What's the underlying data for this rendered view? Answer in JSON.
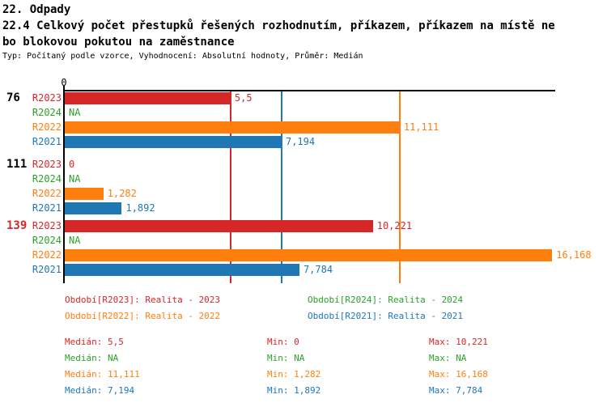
{
  "header": {
    "title_line1": "22. Odpady",
    "title_line2": "22.4 Celkový počet přestupků řešených rozhodnutím, příkazem, příkazem na místě ne",
    "title_line3": "bo blokovou pokutou na zaměstnance",
    "meta": "Typ: Počítaný podle vzorce, Vyhodnocení: Absolutní hodnoty, Průměr: Medián"
  },
  "chart_data": {
    "type": "bar",
    "orientation": "horizontal",
    "x_axis": {
      "zero_label": "0",
      "xlim": [
        0,
        18
      ]
    },
    "grid": false,
    "series_colors": {
      "R2023": "#d62728",
      "R2024": "#2ca02c",
      "R2022": "#ff7f0e",
      "R2021": "#1f77b4"
    },
    "groups": [
      {
        "label": "76",
        "label_color": "#000000",
        "bars": [
          {
            "series": "R2023",
            "value": 5.5,
            "display": "5,5"
          },
          {
            "series": "R2024",
            "value": null,
            "display": "NA"
          },
          {
            "series": "R2022",
            "value": 11.111,
            "display": "11,111"
          },
          {
            "series": "R2021",
            "value": 7.194,
            "display": "7,194"
          }
        ]
      },
      {
        "label": "111",
        "label_color": "#000000",
        "bars": [
          {
            "series": "R2023",
            "value": 0,
            "display": "0"
          },
          {
            "series": "R2024",
            "value": null,
            "display": "NA"
          },
          {
            "series": "R2022",
            "value": 1.282,
            "display": "1,282"
          },
          {
            "series": "R2021",
            "value": 1.892,
            "display": "1,892"
          }
        ]
      },
      {
        "label": "139",
        "label_color": "#d62728",
        "bars": [
          {
            "series": "R2023",
            "value": 10.221,
            "display": "10,221"
          },
          {
            "series": "R2024",
            "value": null,
            "display": "NA"
          },
          {
            "series": "R2022",
            "value": 16.168,
            "display": "16,168"
          },
          {
            "series": "R2021",
            "value": 7.784,
            "display": "7,784"
          }
        ]
      }
    ],
    "median_lines": [
      {
        "series": "R2023",
        "value": 5.5,
        "color": "#d62728"
      },
      {
        "series": "R2021",
        "value": 7.194,
        "color": "#1f77b4"
      },
      {
        "series": "R2022",
        "value": 11.111,
        "color": "#ff7f0e"
      }
    ]
  },
  "legend": {
    "items": [
      {
        "series": "R2023",
        "label": "Období[R2023]: Realita - 2023",
        "color": "#d62728"
      },
      {
        "series": "R2024",
        "label": "Období[R2024]: Realita - 2024",
        "color": "#2ca02c"
      },
      {
        "series": "R2022",
        "label": "Období[R2022]: Realita - 2022",
        "color": "#ff7f0e"
      },
      {
        "series": "R2021",
        "label": "Období[R2021]: Realita - 2021",
        "color": "#1f77b4"
      }
    ]
  },
  "stats": {
    "labels": {
      "median": "Medián",
      "min": "Min",
      "max": "Max"
    },
    "rows": [
      {
        "series": "R2023",
        "color": "#d62728",
        "median": "5,5",
        "min": "0",
        "max": "10,221"
      },
      {
        "series": "R2024",
        "color": "#2ca02c",
        "median": "NA",
        "min": "NA",
        "max": "NA"
      },
      {
        "series": "R2022",
        "color": "#ff7f0e",
        "median": "11,111",
        "min": "1,282",
        "max": "16,168"
      },
      {
        "series": "R2021",
        "color": "#1f77b4",
        "median": "7,194",
        "min": "1,892",
        "max": "7,784"
      }
    ]
  }
}
